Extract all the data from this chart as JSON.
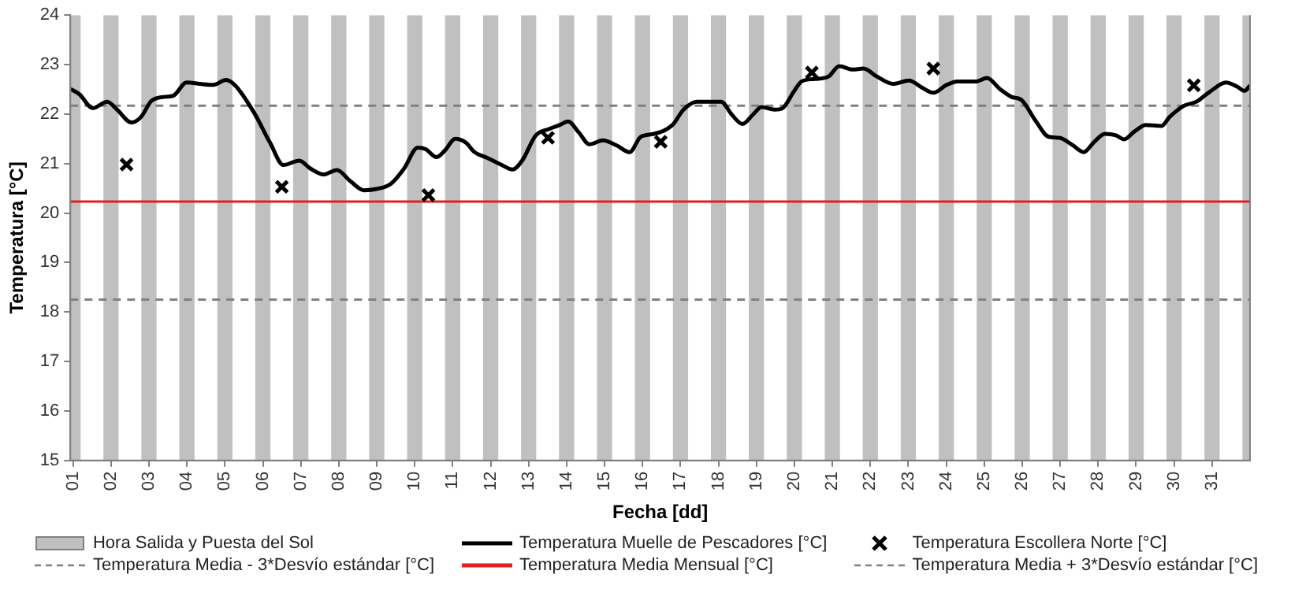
{
  "chart_data": {
    "type": "line",
    "xlabel": "Fecha [dd]",
    "ylabel": "Temperatura [°C]",
    "xlim": [
      0.93,
      32.0
    ],
    "xticks": [
      {
        "value": 1,
        "label": "01"
      },
      {
        "value": 2,
        "label": "02"
      },
      {
        "value": 3,
        "label": "03"
      },
      {
        "value": 4,
        "label": "04"
      },
      {
        "value": 5,
        "label": "05"
      },
      {
        "value": 6,
        "label": "06"
      },
      {
        "value": 7,
        "label": "07"
      },
      {
        "value": 8,
        "label": "08"
      },
      {
        "value": 9,
        "label": "09"
      },
      {
        "value": 10,
        "label": "10"
      },
      {
        "value": 11,
        "label": "11"
      },
      {
        "value": 12,
        "label": "12"
      },
      {
        "value": 13,
        "label": "13"
      },
      {
        "value": 14,
        "label": "14"
      },
      {
        "value": 15,
        "label": "15"
      },
      {
        "value": 16,
        "label": "16"
      },
      {
        "value": 17,
        "label": "17"
      },
      {
        "value": 18,
        "label": "18"
      },
      {
        "value": 19,
        "label": "19"
      },
      {
        "value": 20,
        "label": "20"
      },
      {
        "value": 21,
        "label": "21"
      },
      {
        "value": 22,
        "label": "22"
      },
      {
        "value": 23,
        "label": "23"
      },
      {
        "value": 24,
        "label": "24"
      },
      {
        "value": 25,
        "label": "25"
      },
      {
        "value": 26,
        "label": "26"
      },
      {
        "value": 27,
        "label": "27"
      },
      {
        "value": 28,
        "label": "28"
      },
      {
        "value": 29,
        "label": "29"
      },
      {
        "value": 30,
        "label": "30"
      },
      {
        "value": 31,
        "label": "31"
      }
    ],
    "ylim": [
      15,
      24
    ],
    "yticks": [
      15,
      16,
      17,
      18,
      19,
      20,
      21,
      22,
      23,
      24
    ],
    "grid": false,
    "legend": "bottom",
    "series": [
      {
        "name": "Temperatura Muelle de Pescadores [°C]",
        "type": "line",
        "color": "#000000",
        "marker": "none",
        "line_style": "solid",
        "x": [
          0.93,
          1.17,
          1.52,
          1.9,
          2.16,
          2.54,
          2.79,
          3.07,
          3.43,
          3.64,
          3.99,
          4.35,
          4.7,
          5.03,
          5.27,
          5.76,
          6.19,
          6.54,
          6.96,
          7.25,
          7.6,
          7.95,
          8.31,
          8.66,
          9.02,
          9.37,
          9.72,
          10.08,
          10.29,
          10.57,
          10.79,
          11.07,
          11.35,
          11.56,
          11.92,
          12.27,
          12.58,
          12.83,
          13.19,
          13.54,
          13.82,
          14.04,
          14.32,
          14.6,
          14.96,
          15.31,
          15.66,
          15.95,
          16.3,
          16.79,
          17.08,
          17.43,
          17.79,
          18.07,
          18.35,
          18.63,
          18.91,
          19.13,
          19.48,
          19.69,
          19.98,
          20.19,
          20.54,
          20.9,
          21.18,
          21.53,
          21.82,
          22.17,
          22.6,
          23.02,
          23.37,
          23.66,
          24.01,
          24.29,
          24.79,
          25.07,
          25.42,
          25.71,
          25.99,
          26.34,
          26.7,
          26.98,
          27.33,
          27.62,
          27.9,
          28.18,
          28.47,
          28.68,
          28.96,
          29.25,
          29.67,
          29.88,
          30.24,
          30.59,
          30.94,
          31.37,
          31.65,
          31.86,
          32.0
        ],
        "values": [
          22.51,
          22.4,
          22.12,
          22.25,
          22.09,
          21.83,
          21.94,
          22.27,
          22.35,
          22.37,
          22.64,
          22.61,
          22.59,
          22.69,
          22.58,
          22.04,
          21.42,
          20.97,
          21.06,
          20.9,
          20.78,
          20.87,
          20.64,
          20.46,
          20.49,
          20.59,
          20.9,
          21.32,
          21.29,
          21.13,
          21.26,
          21.5,
          21.42,
          21.24,
          21.11,
          20.98,
          20.88,
          21.06,
          21.57,
          21.7,
          21.78,
          21.85,
          21.63,
          21.39,
          21.47,
          21.37,
          21.23,
          21.54,
          21.6,
          21.78,
          22.09,
          22.25,
          22.25,
          22.25,
          21.99,
          21.8,
          21.99,
          22.14,
          22.09,
          22.12,
          22.45,
          22.66,
          22.71,
          22.76,
          22.97,
          22.9,
          22.92,
          22.76,
          22.61,
          22.68,
          22.53,
          22.43,
          22.59,
          22.66,
          22.66,
          22.73,
          22.5,
          22.35,
          22.28,
          21.88,
          21.54,
          21.52,
          21.37,
          21.23,
          21.44,
          21.6,
          21.57,
          21.49,
          21.65,
          21.78,
          21.76,
          21.94,
          22.16,
          22.25,
          22.45,
          22.64,
          22.56,
          22.47,
          22.58
        ]
      },
      {
        "name": "Temperatura Escollera Norte [°C]",
        "type": "scatter",
        "color": "#000000",
        "marker": "cross",
        "x": [
          2.41,
          6.5,
          10.36,
          13.51,
          16.48,
          20.46,
          23.66,
          30.52
        ],
        "values": [
          20.98,
          20.53,
          20.36,
          21.52,
          21.44,
          22.84,
          22.92,
          22.58
        ]
      }
    ],
    "ref_lines": [
      {
        "axis": "y",
        "value": 18.25,
        "label": "Temperatura Media - 3*Desvío estándar [°C]",
        "color": "#808080",
        "line_style": "dashed"
      },
      {
        "axis": "y",
        "value": 20.23,
        "label": "Temperatura Media Mensual [°C]",
        "color": "#e02020",
        "line_style": "solid"
      },
      {
        "axis": "y",
        "value": 22.17,
        "label": "Temperatura Media + 3*Desvío estándar [°C]",
        "color": "#808080",
        "line_style": "dashed"
      }
    ],
    "bands": [
      {
        "axis": "x",
        "from": 0.93,
        "to": 1.2,
        "label": "Hora Salida y Puesta del Sol",
        "color": "#c0c0c0"
      },
      {
        "axis": "x",
        "from": 1.8,
        "to": 2.2,
        "color": "#c0c0c0"
      },
      {
        "axis": "x",
        "from": 2.8,
        "to": 3.2,
        "color": "#c0c0c0"
      },
      {
        "axis": "x",
        "from": 3.8,
        "to": 4.2,
        "color": "#c0c0c0"
      },
      {
        "axis": "x",
        "from": 4.8,
        "to": 5.2,
        "color": "#c0c0c0"
      },
      {
        "axis": "x",
        "from": 5.8,
        "to": 6.2,
        "color": "#c0c0c0"
      },
      {
        "axis": "x",
        "from": 6.8,
        "to": 7.2,
        "color": "#c0c0c0"
      },
      {
        "axis": "x",
        "from": 7.8,
        "to": 8.2,
        "color": "#c0c0c0"
      },
      {
        "axis": "x",
        "from": 8.8,
        "to": 9.2,
        "color": "#c0c0c0"
      },
      {
        "axis": "x",
        "from": 9.8,
        "to": 10.2,
        "color": "#c0c0c0"
      },
      {
        "axis": "x",
        "from": 10.8,
        "to": 11.2,
        "color": "#c0c0c0"
      },
      {
        "axis": "x",
        "from": 11.8,
        "to": 12.2,
        "color": "#c0c0c0"
      },
      {
        "axis": "x",
        "from": 12.8,
        "to": 13.2,
        "color": "#c0c0c0"
      },
      {
        "axis": "x",
        "from": 13.8,
        "to": 14.2,
        "color": "#c0c0c0"
      },
      {
        "axis": "x",
        "from": 14.8,
        "to": 15.2,
        "color": "#c0c0c0"
      },
      {
        "axis": "x",
        "from": 15.8,
        "to": 16.2,
        "color": "#c0c0c0"
      },
      {
        "axis": "x",
        "from": 16.8,
        "to": 17.2,
        "color": "#c0c0c0"
      },
      {
        "axis": "x",
        "from": 17.8,
        "to": 18.2,
        "color": "#c0c0c0"
      },
      {
        "axis": "x",
        "from": 18.8,
        "to": 19.2,
        "color": "#c0c0c0"
      },
      {
        "axis": "x",
        "from": 19.8,
        "to": 20.2,
        "color": "#c0c0c0"
      },
      {
        "axis": "x",
        "from": 20.8,
        "to": 21.2,
        "color": "#c0c0c0"
      },
      {
        "axis": "x",
        "from": 21.8,
        "to": 22.2,
        "color": "#c0c0c0"
      },
      {
        "axis": "x",
        "from": 22.8,
        "to": 23.2,
        "color": "#c0c0c0"
      },
      {
        "axis": "x",
        "from": 23.8,
        "to": 24.2,
        "color": "#c0c0c0"
      },
      {
        "axis": "x",
        "from": 24.8,
        "to": 25.2,
        "color": "#c0c0c0"
      },
      {
        "axis": "x",
        "from": 25.8,
        "to": 26.2,
        "color": "#c0c0c0"
      },
      {
        "axis": "x",
        "from": 26.8,
        "to": 27.2,
        "color": "#c0c0c0"
      },
      {
        "axis": "x",
        "from": 27.8,
        "to": 28.2,
        "color": "#c0c0c0"
      },
      {
        "axis": "x",
        "from": 28.8,
        "to": 29.2,
        "color": "#c0c0c0"
      },
      {
        "axis": "x",
        "from": 29.8,
        "to": 30.2,
        "color": "#c0c0c0"
      },
      {
        "axis": "x",
        "from": 30.8,
        "to": 31.2,
        "color": "#c0c0c0"
      },
      {
        "axis": "x",
        "from": 31.8,
        "to": 32.0,
        "color": "#c0c0c0"
      }
    ]
  }
}
